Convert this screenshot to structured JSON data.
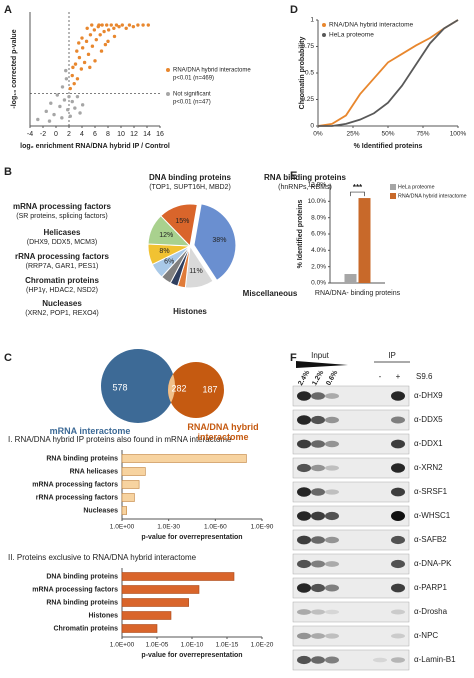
{
  "panel_labels": [
    "A",
    "B",
    "C",
    "D",
    "E",
    "F"
  ],
  "chart_data": [
    {
      "type": "scatter",
      "xlabel": "log₂ enrichment RNA/DNA hybrid IP / Control",
      "ylabel": "-log₁₀ corrected p-value",
      "xlim": [
        -4,
        16
      ],
      "xticks": [
        -4,
        -2,
        0,
        2,
        4,
        6,
        8,
        10,
        12,
        14,
        16
      ],
      "ylim": [
        0,
        7
      ],
      "threshold_x": 2,
      "threshold_y": 2,
      "series": [
        {
          "name": "RNA/DNA hybrid interactome",
          "detail": "p<0.01 (n=469)",
          "color": "#e8872e",
          "x": [
            2.2,
            2.5,
            2.8,
            3.0,
            3.3,
            3.6,
            3.9,
            4.1,
            4.4,
            4.7,
            5.0,
            5.3,
            5.6,
            5.9,
            6.2,
            6.5,
            6.8,
            7.1,
            7.4,
            7.8,
            8.1,
            8.5,
            8.9,
            9.3,
            9.7,
            10.2,
            10.8,
            11.3,
            11.9,
            12.6,
            13.4,
            14.2,
            3.2,
            4.0,
            4.8,
            5.5,
            6.0,
            7.0,
            8.0,
            2.6,
            3.5,
            9.0,
            6.6,
            5.2,
            7.6
          ],
          "values": [
            2.3,
            3.1,
            2.6,
            3.8,
            2.9,
            4.2,
            3.5,
            4.8,
            3.9,
            5.2,
            4.4,
            5.6,
            4.9,
            5.9,
            5.3,
            6.1,
            5.6,
            6.2,
            5.8,
            6.2,
            5.9,
            6.2,
            6.0,
            6.2,
            6.1,
            6.2,
            6.0,
            6.2,
            6.1,
            6.2,
            6.2,
            6.2,
            4.6,
            5.4,
            6.0,
            6.2,
            4.0,
            4.6,
            5.2,
            3.6,
            5.1,
            5.5,
            6.2,
            3.6,
            5.0
          ]
        },
        {
          "name": "Not significant",
          "detail": "p<0.01 (n=47)",
          "color": "#a6a6a6",
          "x": [
            -2.8,
            -1.5,
            -0.8,
            -0.3,
            0.2,
            0.6,
            1.0,
            1.3,
            1.6,
            1.8,
            2.2,
            2.5,
            2.9,
            3.3,
            3.7,
            4.1,
            0.9,
            1.5,
            -1.0,
            2.0
          ],
          "values": [
            0.4,
            0.9,
            1.4,
            0.7,
            1.9,
            1.2,
            2.4,
            1.6,
            2.9,
            1.0,
            0.6,
            1.5,
            1.1,
            1.8,
            0.8,
            1.3,
            0.5,
            3.4,
            0.3,
            1.8
          ]
        }
      ]
    },
    {
      "type": "pie",
      "start_angle": 10,
      "categories": [
        "RNA binding proteins",
        "Miscellaneous",
        "Histones",
        "Nucleases",
        "Chromatin proteins",
        "rRNA processing factors",
        "Helicases",
        "mRNA processing factors",
        "DNA binding proteins"
      ],
      "details": [
        "(hnRNPs, RBMs)",
        null,
        null,
        "(XRN2, POP1, REXO4)",
        "(HP1γ, HDAC2, NSD2)",
        "(RRP7A, GAR1, PES1)",
        "(DHX9, DDX5, MCM3)",
        "(SR proteins, splicing factors)",
        "(TOP1, SUPT16H, MBD2)"
      ],
      "values": [
        38,
        11,
        3,
        3,
        4,
        6,
        8,
        12,
        15
      ],
      "value_labels": [
        "38%",
        "11%",
        null,
        null,
        null,
        "6%",
        "8%",
        "12%",
        "15%"
      ],
      "colors": [
        "#6a8fd0",
        "#d9d9d9",
        "#e07b39",
        "#2f3f5f",
        "#808080",
        "#a9c9e8",
        "#f1c232",
        "#a9d18e",
        "#d9652b"
      ],
      "label_colors": [
        "#4472c4",
        "#a6a6a6",
        "#d9652b",
        "#1f3864",
        "#404040",
        "#2f5597",
        "#bf9000",
        "#548235",
        "#c55a11"
      ]
    },
    {
      "type": "hbar",
      "title": "I. RNA/DNA hybrid IP proteins also found in mRNA interactome",
      "categories": [
        "RNA binding proteins",
        "RNA helicases",
        "mRNA processing factors",
        "rRNA processing factors",
        "Nucleases"
      ],
      "values": [
        1e-80,
        1e-15,
        1e-11,
        1e-08,
        0.001
      ],
      "log_scale": true,
      "xlim": [
        1,
        1e-90
      ],
      "xticks": [
        {
          "value": 1,
          "label": "1.0E+00"
        },
        {
          "value": 1e-30,
          "label": "1.0E-30"
        },
        {
          "value": 1e-60,
          "label": "1.0E-60"
        },
        {
          "value": 1e-90,
          "label": "1.0E-90"
        }
      ],
      "xlabel": "p-value for overrepresentation",
      "color": "#f7d3a0",
      "edge_color": "#c0833f"
    },
    {
      "type": "hbar",
      "title": "II. Proteins exclusive to RNA/DNA hybrid interactome",
      "categories": [
        "DNA binding proteins",
        "mRNA processing factors",
        "RNA binding proteins",
        "Histones",
        "Chromatin proteins"
      ],
      "values": [
        1e-16,
        1e-11,
        3e-10,
        1e-07,
        1e-05
      ],
      "log_scale": true,
      "xlim": [
        1,
        1e-20
      ],
      "xticks": [
        {
          "value": 1,
          "label": "1.0E+00"
        },
        {
          "value": 1e-05,
          "label": "1.0E-05"
        },
        {
          "value": 1e-10,
          "label": "1.0E-10"
        },
        {
          "value": 1e-15,
          "label": "1.0E-15"
        },
        {
          "value": 1e-20,
          "label": "1.0E-20"
        }
      ],
      "xlabel": "p-value for overrepresentation",
      "color": "#d9652b",
      "edge_color": "#a94a1a"
    },
    {
      "type": "line",
      "x": [
        0,
        10,
        20,
        30,
        40,
        50,
        60,
        70,
        80,
        90,
        100
      ],
      "xlim": [
        0,
        100
      ],
      "xticks": [
        {
          "value": 0,
          "label": "0%"
        },
        {
          "value": 25,
          "label": "25%"
        },
        {
          "value": 50,
          "label": "50%"
        },
        {
          "value": 75,
          "label": "75%"
        },
        {
          "value": 100,
          "label": "100%"
        }
      ],
      "ylim": [
        0,
        1
      ],
      "yticks": [
        0,
        0.25,
        0.5,
        0.75,
        1
      ],
      "xlabel": "% Identified proteins",
      "ylabel": "Chromatin probability",
      "series": [
        {
          "name": "RNA/DNA hybrid interactome",
          "color": "#e8872e",
          "values": [
            0,
            0.02,
            0.1,
            0.3,
            0.45,
            0.6,
            0.68,
            0.76,
            0.83,
            0.92,
            1.0
          ]
        },
        {
          "name": "HeLa proteome",
          "color": "#595959",
          "values": [
            0,
            0,
            0.02,
            0.06,
            0.12,
            0.22,
            0.38,
            0.58,
            0.78,
            0.92,
            1.0
          ]
        }
      ]
    },
    {
      "type": "bar",
      "categories": [
        "RNA/DNA- binding proteins"
      ],
      "series": [
        {
          "name": "HeLa proteome",
          "color": "#a6a6a6",
          "values": [
            1.1
          ]
        },
        {
          "name": "RNA/DNA hybrid interactome",
          "color": "#c8692a",
          "values": [
            10.4
          ]
        }
      ],
      "ylim": [
        0,
        12
      ],
      "yticks": [
        {
          "value": 0,
          "label": "0.0%"
        },
        {
          "value": 2,
          "label": "2.0%"
        },
        {
          "value": 4,
          "label": "4.0%"
        },
        {
          "value": 6,
          "label": "6.0%"
        },
        {
          "value": 8,
          "label": "8.0%"
        },
        {
          "value": 10,
          "label": "10.0%"
        },
        {
          "value": 12,
          "label": "12.0%"
        }
      ],
      "ylabel": "% Identified proteins",
      "annotation": "***"
    }
  ],
  "venn": {
    "sets": [
      {
        "name": "mRNA interactome",
        "count": 578,
        "color": "#3d6a96"
      },
      {
        "name": "RNA/DNA hybrid interactome",
        "count": 187,
        "color": "#c55a11"
      }
    ],
    "overlap": 282,
    "overlap_color": "#f0c08a"
  },
  "blot": {
    "input_label": "Input",
    "ip_label": "IP",
    "input_lanes": [
      "2.4%",
      "1.2%",
      "0.6%"
    ],
    "ip_lanes": [
      "-",
      "+"
    ],
    "ip_antibody": "S9.6",
    "antibodies": [
      "α-DHX9",
      "α-DDX5",
      "α-DDX1",
      "α-XRN2",
      "α-SRSF1",
      "α-WHSC1",
      "α-SAFB2",
      "α-DNA-PK",
      "α-PARP1",
      "α-Drosha",
      "α-NPC",
      "α-Lamin-B1"
    ]
  }
}
